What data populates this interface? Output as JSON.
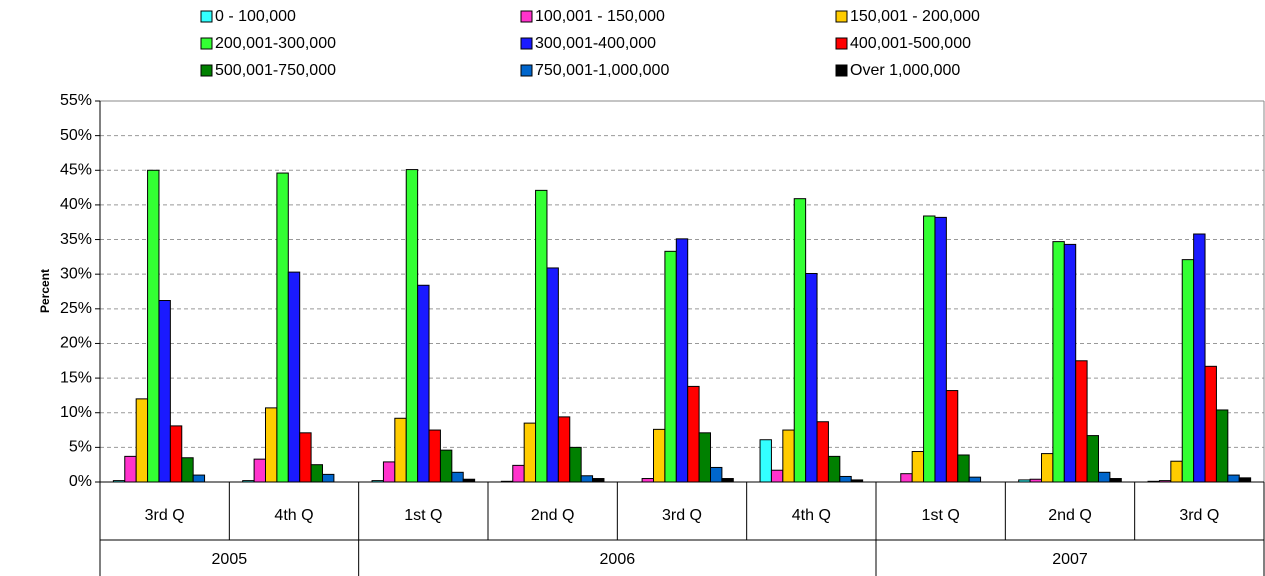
{
  "chart_data": {
    "type": "bar",
    "y_label": "Percent",
    "categories": [
      "3rd Q",
      "4th Q",
      "1st Q",
      "2nd Q",
      "3rd Q",
      "4th Q",
      "1st Q",
      "2nd Q",
      "3rd Q"
    ],
    "years": [
      "2005",
      null,
      "2006",
      null,
      null,
      null,
      "2007",
      null,
      null
    ],
    "series": [
      {
        "name": "0 - 100,000",
        "color": "#33ffff",
        "values": [
          0.2,
          0.2,
          0.2,
          0.1,
          0,
          6.1,
          0,
          0.3,
          0.1
        ]
      },
      {
        "name": "100,001 - 150,000",
        "color": "#ff33cc",
        "values": [
          3.7,
          3.3,
          2.9,
          2.4,
          0.5,
          1.7,
          1.2,
          0.4,
          0.2
        ]
      },
      {
        "name": "150,001 - 200,000",
        "color": "#ffcc00",
        "values": [
          12,
          10.7,
          9.2,
          8.5,
          7.6,
          7.5,
          4.4,
          4.1,
          3.0
        ]
      },
      {
        "name": "200,001-300,000",
        "color": "#33ff33",
        "values": [
          45,
          44.6,
          45.1,
          42.1,
          33.3,
          40.9,
          38.4,
          34.7,
          32.1
        ]
      },
      {
        "name": "300,001-400,000",
        "color": "#1a1aff",
        "values": [
          26.2,
          30.3,
          28.4,
          30.9,
          35.1,
          30.1,
          38.2,
          34.3,
          35.8
        ]
      },
      {
        "name": "400,001-500,000",
        "color": "#ff0000",
        "values": [
          8.1,
          7.1,
          7.5,
          9.4,
          13.8,
          8.7,
          13.2,
          17.5,
          16.7
        ]
      },
      {
        "name": "500,001-750,000",
        "color": "#008000",
        "values": [
          3.5,
          2.5,
          4.6,
          5.0,
          7.1,
          3.7,
          3.9,
          6.7,
          10.4
        ]
      },
      {
        "name": "750,001-1,000,000",
        "color": "#0066cc",
        "values": [
          1.0,
          1.1,
          1.4,
          0.9,
          2.1,
          0.8,
          0.7,
          1.4,
          1.0
        ]
      },
      {
        "name": "Over 1,000,000",
        "color": "#000000",
        "values": [
          0,
          0,
          0.4,
          0.5,
          0.5,
          0.3,
          0,
          0.5,
          0.6
        ]
      }
    ],
    "ylim": [
      0,
      55
    ],
    "yticks": [
      {
        "value": 0,
        "label": "0%"
      },
      {
        "value": 5,
        "label": "5%"
      },
      {
        "value": 10,
        "label": "10%"
      },
      {
        "value": 15,
        "label": "15%"
      },
      {
        "value": 20,
        "label": "20%"
      },
      {
        "value": 25,
        "label": "25%"
      },
      {
        "value": 30,
        "label": "30%"
      },
      {
        "value": 35,
        "label": "35%"
      },
      {
        "value": 40,
        "label": "40%"
      },
      {
        "value": 45,
        "label": "45%"
      },
      {
        "value": 50,
        "label": "50%"
      },
      {
        "value": 55,
        "label": "55%"
      }
    ],
    "grid": true,
    "legend": "top"
  }
}
